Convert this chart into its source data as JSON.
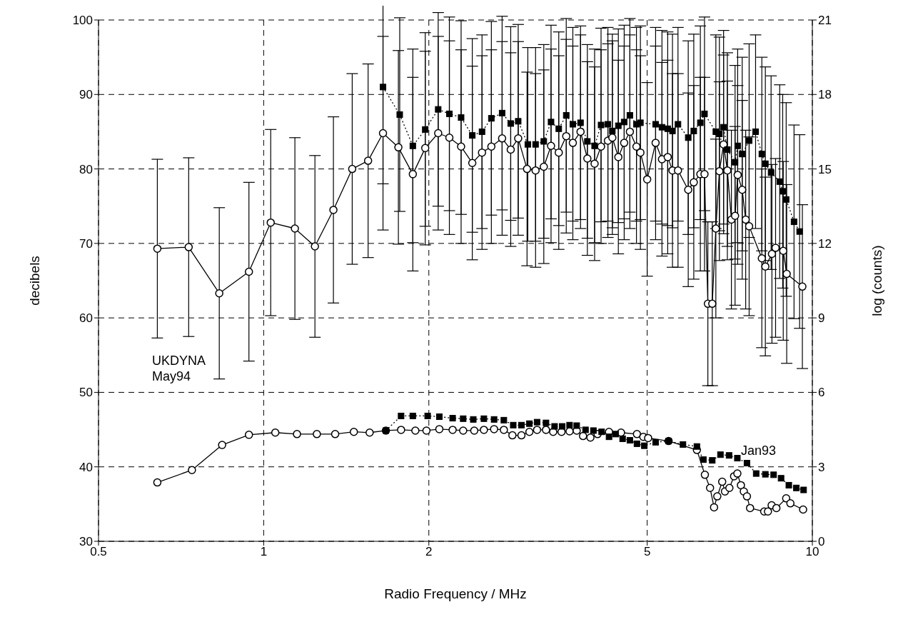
{
  "chart_data": {
    "type": "line",
    "xlabel": "Radio Frequency / MHz",
    "ylabel": "decibels",
    "y2label": "log (counts)",
    "log": "x",
    "grid": true,
    "legend": false,
    "xlim": [
      0.5,
      10
    ],
    "xticks": [
      0.5,
      1,
      2,
      5,
      10
    ],
    "ylim": [
      30,
      100
    ],
    "yticks": [
      30,
      40,
      50,
      60,
      70,
      80,
      90,
      100
    ],
    "y2lim": [
      0,
      21
    ],
    "y2ticks": [
      0,
      3,
      6,
      9,
      12,
      15,
      18,
      21
    ],
    "annotations": [
      "UKDYNA\nMay94",
      "Jan93"
    ],
    "series": [
      {
        "color": "#000000",
        "marker": "circle",
        "line_style": "solid",
        "x": [
          0.64,
          0.73,
          0.83,
          0.94,
          1.03,
          1.14,
          1.24,
          1.34,
          1.45,
          1.55,
          1.65,
          1.76,
          1.87,
          1.97,
          2.08,
          2.18,
          2.29,
          2.4,
          2.5,
          2.6,
          2.72,
          2.82,
          2.91,
          3.02,
          3.13,
          3.24,
          3.34,
          3.45,
          3.56,
          3.66,
          3.78,
          3.89,
          4.01,
          4.12,
          4.24,
          4.32,
          4.43,
          4.54,
          4.65,
          4.78,
          4.86,
          5.0,
          5.18,
          5.32,
          5.45,
          5.56,
          5.69,
          5.94,
          6.08,
          6.25,
          6.36,
          6.45,
          6.57,
          6.67,
          6.77,
          6.89,
          7.0,
          7.12,
          7.23,
          7.31,
          7.45,
          7.56,
          7.67,
          8.09,
          8.21,
          8.44,
          8.57,
          8.85,
          8.98,
          9.59
        ],
        "values": [
          69.3,
          69.5,
          63.3,
          66.2,
          72.8,
          72,
          69.6,
          74.5,
          80,
          81.1,
          84.8,
          82.9,
          79.3,
          82.8,
          84.8,
          84.2,
          83,
          80.8,
          82.2,
          83,
          84.1,
          82.6,
          84.1,
          80,
          79.8,
          80.3,
          83.1,
          82.2,
          84.4,
          83.5,
          85,
          81.4,
          80.7,
          83,
          83.8,
          84.2,
          81.6,
          83.5,
          85,
          83,
          82.2,
          78.6,
          83.5,
          81.3,
          81.6,
          79.8,
          79.8,
          77.2,
          78.2,
          79.3,
          79.3,
          61.9,
          61.9,
          72,
          79.7,
          83.3,
          79.8,
          73.2,
          73.7,
          79.2,
          77.2,
          73.2,
          72.3,
          68,
          66.9,
          68.6,
          69.4,
          69,
          65.9,
          64.2
        ],
        "errors": [
          12,
          12,
          11.5,
          12,
          12.5,
          12.2,
          12.2,
          12.5,
          12.8,
          13,
          13,
          13,
          13,
          13,
          13,
          13,
          13,
          13,
          13,
          13,
          13,
          13,
          13,
          13,
          13,
          13,
          13,
          13,
          13,
          13,
          13,
          13,
          13,
          13,
          13,
          13,
          13,
          13,
          13,
          13,
          13,
          13,
          13,
          13,
          13,
          13,
          13,
          13,
          13,
          13,
          13,
          11,
          11,
          12,
          12,
          12,
          12,
          12,
          12,
          12,
          12,
          12,
          12,
          12,
          12,
          12,
          12,
          12,
          12,
          11
        ]
      },
      {
        "color": "#000000",
        "marker": "square",
        "line_style": "dotted",
        "x": [
          1.65,
          1.77,
          1.87,
          1.97,
          2.08,
          2.18,
          2.29,
          2.4,
          2.5,
          2.6,
          2.72,
          2.82,
          2.91,
          3.03,
          3.13,
          3.24,
          3.34,
          3.45,
          3.56,
          3.66,
          3.78,
          3.89,
          4.01,
          4.12,
          4.24,
          4.32,
          4.43,
          4.54,
          4.65,
          4.78,
          4.86,
          5.18,
          5.32,
          5.45,
          5.56,
          5.69,
          5.94,
          6.08,
          6.25,
          6.36,
          6.67,
          6.77,
          6.89,
          7.0,
          7.23,
          7.31,
          7.45,
          7.67,
          7.88,
          8.09,
          8.21,
          8.41,
          8.72,
          8.83,
          8.96,
          9.26,
          9.48
        ],
        "values": [
          91,
          87.3,
          83.1,
          85.3,
          88,
          87.4,
          86.9,
          84.5,
          85,
          86.8,
          87.5,
          86.1,
          86.4,
          83.3,
          83.3,
          83.7,
          86.3,
          85.4,
          87.2,
          86,
          86.2,
          83.7,
          83.1,
          85.9,
          86,
          85.1,
          85.8,
          86.3,
          87.2,
          86,
          86.2,
          86,
          85.6,
          85.4,
          85.1,
          86,
          84.2,
          85.1,
          86.2,
          87.4,
          85,
          84.7,
          85.6,
          82.6,
          80.9,
          83.1,
          82,
          83.8,
          85,
          82,
          80.7,
          79.5,
          78.3,
          77,
          75.9,
          72.9,
          71.6
        ],
        "errors": [
          13,
          13,
          13,
          13,
          13,
          13,
          13,
          13,
          13,
          13,
          13,
          13,
          13,
          13,
          13,
          13,
          13,
          13,
          13,
          13,
          13,
          13,
          13,
          13,
          13,
          13,
          13,
          13,
          13,
          13,
          13,
          13,
          13,
          13,
          13,
          13,
          13,
          13,
          13,
          13,
          13,
          13,
          13,
          13,
          13,
          13,
          13,
          13,
          13,
          13,
          13,
          13,
          13,
          13,
          13,
          13,
          13
        ]
      },
      {
        "color": "#000000",
        "marker": "circle",
        "line_style": "solid",
        "axis": "y2",
        "x": [
          0.64,
          0.74,
          0.84,
          0.94,
          1.05,
          1.15,
          1.25,
          1.35,
          1.46,
          1.56,
          1.67,
          1.78,
          1.89,
          1.98,
          2.09,
          2.21,
          2.31,
          2.42,
          2.52,
          2.63,
          2.74,
          2.84,
          2.95,
          3.05,
          3.15,
          3.27,
          3.37,
          3.49,
          3.61,
          3.72,
          3.82,
          3.94,
          4.06,
          4.26,
          4.48,
          4.79,
          4.92,
          5.02,
          5.47,
          6.16,
          6.37,
          6.51,
          6.62,
          6.71,
          6.85,
          6.93,
          7.06,
          7.2,
          7.3,
          7.41,
          7.5,
          7.6,
          7.7,
          8.17,
          8.3,
          8.43,
          8.6,
          8.96,
          9.12,
          9.62
        ],
        "values": [
          2.37,
          2.87,
          3.88,
          4.29,
          4.38,
          4.32,
          4.32,
          4.32,
          4.41,
          4.38,
          4.46,
          4.49,
          4.46,
          4.46,
          4.52,
          4.49,
          4.46,
          4.46,
          4.49,
          4.52,
          4.49,
          4.27,
          4.27,
          4.41,
          4.49,
          4.49,
          4.41,
          4.41,
          4.43,
          4.46,
          4.24,
          4.18,
          4.32,
          4.41,
          4.38,
          4.32,
          4.21,
          4.16,
          4.04,
          3.68,
          2.68,
          2.15,
          1.37,
          1.81,
          2.4,
          2.01,
          2.15,
          2.62,
          2.73,
          2.26,
          2.01,
          1.81,
          1.34,
          1.2,
          1.2,
          1.45,
          1.34,
          1.73,
          1.53,
          1.28
        ]
      },
      {
        "color": "#000000",
        "marker": "square",
        "line_style": "dotted",
        "axis": "y2",
        "x": [
          1.67,
          1.78,
          1.87,
          1.99,
          2.09,
          2.21,
          2.31,
          2.41,
          2.52,
          2.63,
          2.74,
          2.85,
          2.95,
          3.05,
          3.15,
          3.27,
          3.39,
          3.5,
          3.61,
          3.72,
          3.86,
          3.99,
          4.13,
          4.26,
          4.38,
          4.51,
          4.65,
          4.79,
          4.94,
          5.18,
          5.47,
          5.81,
          6.16,
          6.33,
          6.57,
          6.8,
          7.05,
          7.3,
          7.6,
          7.9,
          8.21,
          8.5,
          8.77,
          9.06,
          9.35,
          9.64
        ],
        "values": [
          4.46,
          5.05,
          5.05,
          5.05,
          5.02,
          4.96,
          4.94,
          4.91,
          4.94,
          4.91,
          4.88,
          4.68,
          4.68,
          4.74,
          4.8,
          4.77,
          4.63,
          4.63,
          4.68,
          4.66,
          4.49,
          4.46,
          4.41,
          4.21,
          4.32,
          4.13,
          4.07,
          3.93,
          3.85,
          3.99,
          4.04,
          3.9,
          3.82,
          3.29,
          3.26,
          3.49,
          3.46,
          3.35,
          3.15,
          2.73,
          2.7,
          2.68,
          2.54,
          2.26,
          2.15,
          2.07
        ]
      }
    ]
  }
}
